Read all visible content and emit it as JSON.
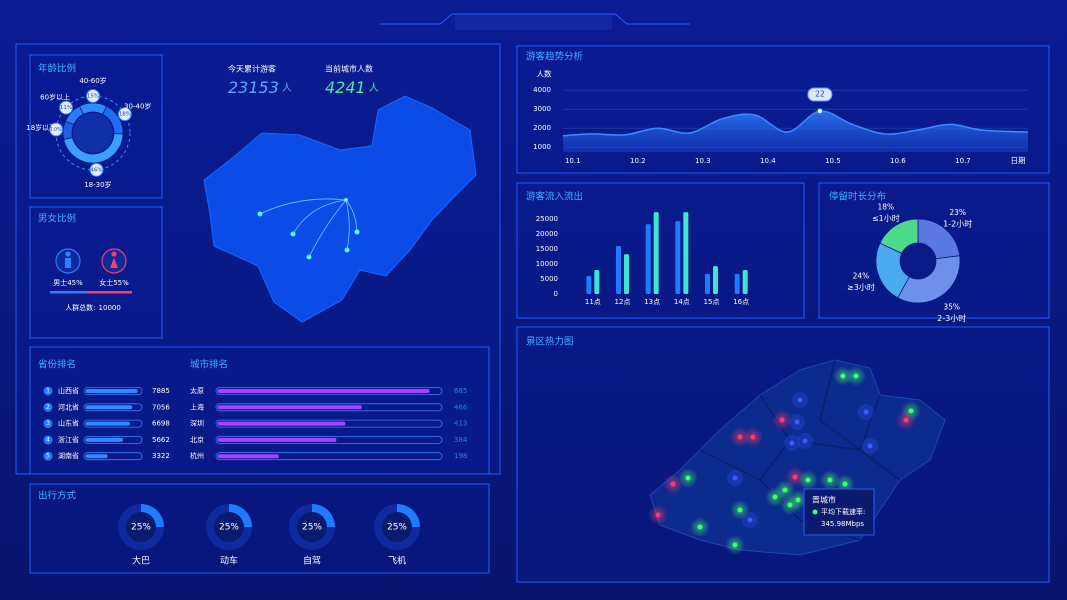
{
  "kpis": [
    {
      "label": "今天累计游客",
      "value": 23153,
      "unit": "人"
    },
    {
      "label": "当前城市人数",
      "value": 4241,
      "unit": "人"
    }
  ],
  "chart_data": [
    {
      "type": "pie",
      "title": "年龄比例",
      "categories": [
        "40-60岁",
        "30-40岁",
        "18-30岁",
        "18岁以下",
        "60岁以上"
      ],
      "values": [
        15,
        18,
        46,
        10,
        11
      ],
      "value_labels": [
        "15%",
        "18%",
        "46%",
        "10%",
        "11%"
      ],
      "colors": [
        "#2f8cff",
        "#1f6df2",
        "#3aa0ff",
        "#1c5fe6",
        "#2a7bf5"
      ]
    },
    {
      "type": "gender",
      "title": "男女比例",
      "categories": [
        "男士",
        "女士"
      ],
      "values": [
        45,
        55
      ],
      "value_labels": [
        "45%",
        "55%"
      ],
      "colors": [
        "#2f7fff",
        "#ff3a6a"
      ],
      "total_label": "人群总数:",
      "total": 10000
    },
    {
      "type": "hbar",
      "title": "省份排名",
      "ranks": [
        1,
        2,
        3,
        4,
        5
      ],
      "categories": [
        "山西省",
        "河北省",
        "山东省",
        "浙江省",
        "湖南省"
      ],
      "values": [
        7885,
        7056,
        6698,
        5662,
        3322
      ],
      "xlim": [
        0,
        8300
      ],
      "color": "#2f8cff"
    },
    {
      "type": "hbar",
      "title": "城市排名",
      "categories": [
        "太原",
        "上海",
        "深圳",
        "北京",
        "杭州"
      ],
      "values": [
        685,
        466,
        413,
        384,
        198
      ],
      "xlim": [
        0,
        720
      ],
      "color": "#b23cff"
    },
    {
      "type": "gauge",
      "title": "出行方式",
      "categories": [
        "大巴",
        "动车",
        "自驾",
        "飞机"
      ],
      "values": [
        25,
        25,
        25,
        25
      ],
      "value_labels": [
        "25%",
        "25%",
        "25%",
        "25%"
      ],
      "ylim": [
        0,
        100
      ],
      "color": "#1e7bff"
    },
    {
      "type": "line",
      "title": "游客趋势分析",
      "y_label": "人数",
      "x_label": "日期",
      "x": [
        0.85,
        1.3,
        1.8,
        2.3,
        2.8,
        3.3,
        3.8,
        4.3,
        4.8,
        5.3,
        5.8,
        6.3,
        6.8,
        7.3,
        8.0
      ],
      "values": [
        1600,
        1700,
        1650,
        2000,
        1750,
        2500,
        2700,
        1800,
        2900,
        2200,
        1700,
        1900,
        2200,
        1900,
        1800
      ],
      "xlim": [
        0.85,
        8.0
      ],
      "xticks": [
        {
          "value": 1,
          "label": "10.1"
        },
        {
          "value": 2,
          "label": "10.2"
        },
        {
          "value": 3,
          "label": "10.3"
        },
        {
          "value": 4,
          "label": "10.4"
        },
        {
          "value": 5,
          "label": "10.5"
        },
        {
          "value": 6,
          "label": "10.6"
        },
        {
          "value": 7,
          "label": "10.7"
        }
      ],
      "ylim": [
        750,
        4300
      ],
      "yticks": [
        1000,
        2000,
        3000,
        4000
      ],
      "grid": true,
      "color": "#3a8cff",
      "annotation": {
        "x": 4.8,
        "label": "22"
      }
    },
    {
      "type": "bar",
      "title": "游客流入流出",
      "categories": [
        "11点",
        "12点",
        "13点",
        "14点",
        "15点",
        "16点"
      ],
      "series": [
        {
          "color": "#1f7bff",
          "values": [
            6000,
            16000,
            23300,
            24300,
            6700,
            6700
          ]
        },
        {
          "color": "#3ee6d0",
          "values": [
            8000,
            13300,
            27300,
            27300,
            9300,
            8000
          ]
        }
      ],
      "ylim": [
        0,
        28000
      ],
      "yticks": [
        0,
        5000,
        10000,
        15000,
        20000,
        25000
      ]
    },
    {
      "type": "pie",
      "title": "停留时长分布",
      "categories": [
        "1-2小时",
        "2-3小时",
        "≥3小时",
        "≤1小时"
      ],
      "values": [
        23,
        35,
        24,
        18
      ],
      "value_labels": [
        "23%",
        "35%",
        "24%",
        "18%"
      ],
      "colors": [
        "#5a78e0",
        "#6f90ea",
        "#4aaaf0",
        "#4cd98a"
      ]
    }
  ],
  "heatmap": {
    "title": "景区热力图",
    "tooltip": {
      "city": "晋城市",
      "label": "平均下载速率:",
      "value": "345.98Mbps"
    }
  }
}
